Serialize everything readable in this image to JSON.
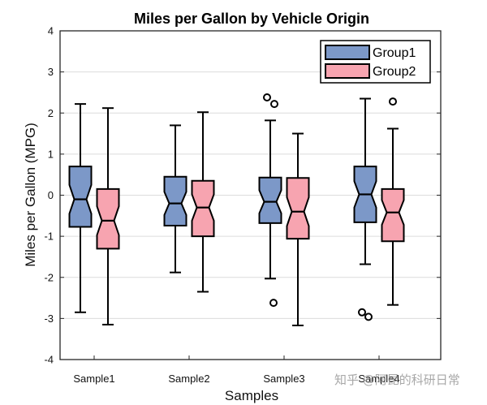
{
  "chart_data": {
    "type": "box",
    "title": "Miles per Gallon by Vehicle Origin",
    "xlabel": "Samples",
    "ylabel": "Miles per Gallon (MPG)",
    "ylim": [
      -4,
      4
    ],
    "yticks": [
      -4,
      -3,
      -2,
      -1,
      0,
      1,
      2,
      3,
      4
    ],
    "grid": "horizontal",
    "legend_position": "top-right",
    "notched": true,
    "categories": [
      "Sample1",
      "Sample2",
      "Sample3",
      "Sample4"
    ],
    "series": [
      {
        "name": "Group1",
        "color": "#7c98c8",
        "boxes": [
          {
            "whisker_low": -2.85,
            "q1": -0.77,
            "median": -0.1,
            "q3": 0.7,
            "whisker_high": 2.22,
            "notch_low": -0.45,
            "notch_high": 0.25,
            "outliers": []
          },
          {
            "whisker_low": -1.88,
            "q1": -0.74,
            "median": -0.2,
            "q3": 0.45,
            "whisker_high": 1.7,
            "notch_low": -0.48,
            "notch_high": 0.08,
            "outliers": []
          },
          {
            "whisker_low": -2.03,
            "q1": -0.68,
            "median": -0.16,
            "q3": 0.43,
            "whisker_high": 1.82,
            "notch_low": -0.44,
            "notch_high": 0.12,
            "outliers": [
              2.38,
              2.22,
              -2.62
            ]
          },
          {
            "whisker_low": -1.68,
            "q1": -0.66,
            "median": 0.02,
            "q3": 0.7,
            "whisker_high": 2.35,
            "notch_low": -0.3,
            "notch_high": 0.34,
            "outliers": [
              -2.85,
              -2.96
            ]
          }
        ]
      },
      {
        "name": "Group2",
        "color": "#f7a4b0",
        "boxes": [
          {
            "whisker_low": -3.15,
            "q1": -1.3,
            "median": -0.62,
            "q3": 0.15,
            "whisker_high": 2.12,
            "notch_low": -0.97,
            "notch_high": -0.27,
            "outliers": []
          },
          {
            "whisker_low": -2.35,
            "q1": -1.0,
            "median": -0.3,
            "q3": 0.35,
            "whisker_high": 2.02,
            "notch_low": -0.62,
            "notch_high": 0.02,
            "outliers": []
          },
          {
            "whisker_low": -3.17,
            "q1": -1.06,
            "median": -0.4,
            "q3": 0.42,
            "whisker_high": 1.5,
            "notch_low": -0.75,
            "notch_high": -0.05,
            "outliers": []
          },
          {
            "whisker_low": -2.67,
            "q1": -1.12,
            "median": -0.42,
            "q3": 0.15,
            "whisker_high": 1.62,
            "notch_low": -0.72,
            "notch_high": -0.12,
            "outliers": [
              2.28
            ]
          }
        ]
      }
    ]
  },
  "watermark": "知乎 @阿昆的科研日常"
}
